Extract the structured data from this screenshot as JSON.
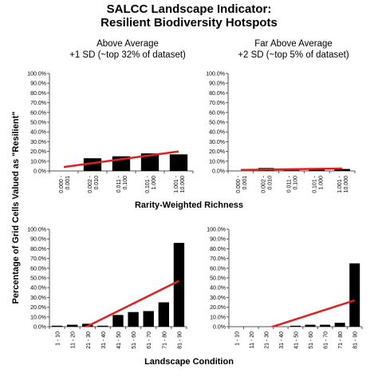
{
  "header": {
    "title_line1": "SALCC Landscape Indicator:",
    "title_line2": "Resilient Biodiversity Hotspots"
  },
  "panel_titles": {
    "top_left": [
      "Above Average",
      "+1 SD (~top 32% of dataset)"
    ],
    "top_right": [
      "Far Above Average",
      "+2 SD (~top 5% of dataset)"
    ]
  },
  "axes": {
    "y_label": "Percentage of Grid Cells Valued as \"Resilient\"",
    "x_label_top": "Rarity-Weighted Richness",
    "x_label_bottom": "Landscape Condition"
  },
  "colors": {
    "bar": "#000000",
    "trend": "#e02020",
    "axis": "#555555"
  },
  "chart_data": [
    {
      "type": "bar",
      "title": "Above Average +1 SD (~top 32% of dataset)",
      "xlabel": "Rarity-Weighted Richness",
      "ylabel": "Percentage of Grid Cells Valued as \"Resilient\"",
      "ylim": [
        0,
        100
      ],
      "yticks": [
        "0.0%",
        "10.0%",
        "20.0%",
        "30.0%",
        "40.0%",
        "50.0%",
        "60.0%",
        "70.0%",
        "80.0%",
        "90.0%",
        "100.0%"
      ],
      "categories": [
        "0.000 - 0.001",
        "0.002 - 0.010",
        "0.011 - 0.100",
        "0.101 - 1.000",
        "1.001 - 10.000"
      ],
      "values": [
        0,
        13,
        15,
        18,
        17
      ],
      "trendline": [
        4,
        20
      ]
    },
    {
      "type": "bar",
      "title": "Far Above Average +2 SD (~top 5% of dataset)",
      "xlabel": "Rarity-Weighted Richness",
      "ylabel": "Percentage of Grid Cells Valued as \"Resilient\"",
      "ylim": [
        0,
        100
      ],
      "yticks": [
        "0.0%",
        "10.0%",
        "20.0%",
        "30.0%",
        "40.0%",
        "50.0%",
        "60.0%",
        "70.0%",
        "80.0%",
        "90.0%",
        "100.0%"
      ],
      "categories": [
        "0.000 - 0.001",
        "0.002 - 0.010",
        "0.011 - 0.100",
        "0.101 - 1.000",
        "1.001 - 10.000"
      ],
      "values": [
        0,
        3,
        2,
        2,
        2
      ],
      "trendline": [
        1,
        2.5
      ]
    },
    {
      "type": "bar",
      "title": "",
      "xlabel": "Landscape Condition",
      "ylabel": "Percentage of Grid Cells Valued as \"Resilient\"",
      "ylim": [
        0,
        100
      ],
      "yticks": [
        "0.0%",
        "10.0%",
        "20.0%",
        "30.0%",
        "40.0%",
        "50.0%",
        "60.0%",
        "70.0%",
        "80.0%",
        "90.0%",
        "100.0%"
      ],
      "categories": [
        "1 - 10",
        "11 - 20",
        "21 - 30",
        "31 - 40",
        "41 - 50",
        "51 - 60",
        "61 - 70",
        "71 - 80",
        "81 - 90"
      ],
      "values": [
        1,
        2,
        3,
        1,
        12,
        15,
        16,
        25,
        86
      ],
      "trendline": [
        -15,
        47
      ]
    },
    {
      "type": "bar",
      "title": "",
      "xlabel": "Landscape Condition",
      "ylabel": "Percentage of Grid Cells Valued as \"Resilient\"",
      "ylim": [
        0,
        100
      ],
      "yticks": [
        "0.0%",
        "10.0%",
        "20.0%",
        "30.0%",
        "40.0%",
        "50.0%",
        "60.0%",
        "70.0%",
        "80.0%",
        "90.0%",
        "100.0%"
      ],
      "categories": [
        "1 - 10",
        "11 - 20",
        "21 - 30",
        "31 - 40",
        "41 - 50",
        "51 - 60",
        "61 - 70",
        "71 - 80",
        "81 - 90"
      ],
      "values": [
        0,
        0,
        0,
        0,
        1,
        2,
        2,
        4,
        65
      ],
      "trendline": [
        -12,
        27
      ]
    }
  ]
}
